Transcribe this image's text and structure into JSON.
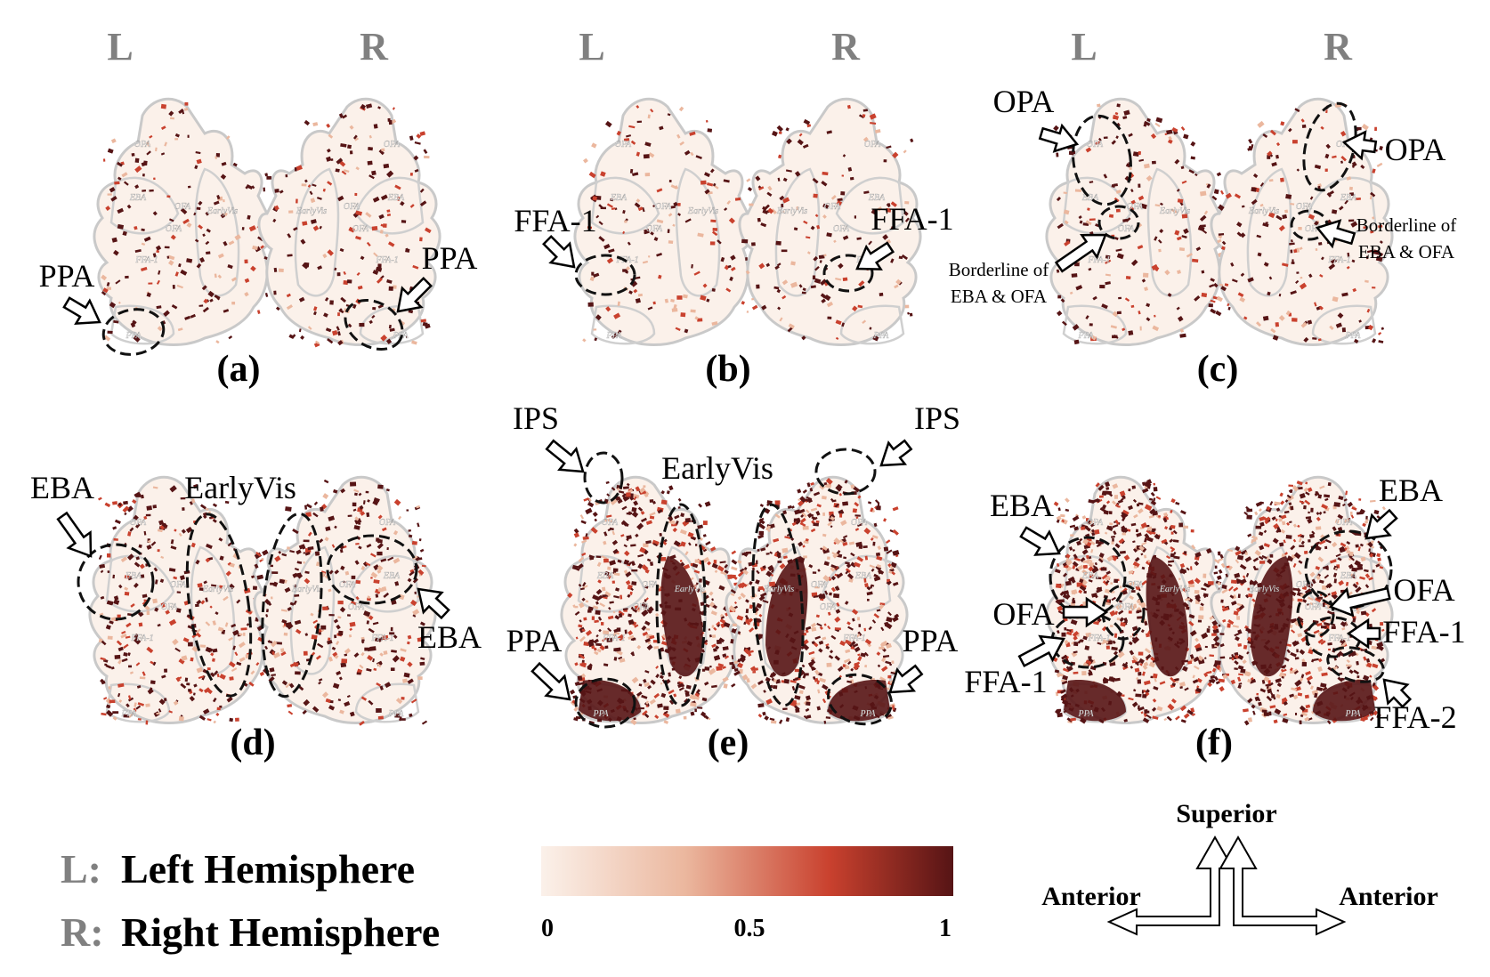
{
  "hemisphere_letters": {
    "left": "L",
    "right": "R"
  },
  "panels": [
    {
      "label": "(a)",
      "intensity": 0.12,
      "callouts": [
        "PPA",
        "PPA"
      ]
    },
    {
      "label": "(b)",
      "intensity": 0.1,
      "callouts": [
        "FFA-1",
        "FFA-1"
      ]
    },
    {
      "label": "(c)",
      "intensity": 0.14,
      "callouts": [
        "OPA",
        "OPA",
        "Borderline of",
        "EBA & OFA",
        "Borderline of",
        "EBA & OFA"
      ]
    },
    {
      "label": "(d)",
      "intensity": 0.3,
      "callouts": [
        "EBA",
        "EarlyVis",
        "EBA"
      ]
    },
    {
      "label": "(e)",
      "intensity": 0.62,
      "callouts": [
        "IPS",
        "IPS",
        "EarlyVis",
        "PPA",
        "PPA"
      ]
    },
    {
      "label": "(f)",
      "intensity": 0.78,
      "callouts": [
        "EBA",
        "EBA",
        "OFA",
        "OFA",
        "FFA-1",
        "FFA-1",
        "FFA-2"
      ]
    }
  ],
  "roi_outline_labels": [
    "OPA",
    "EBA",
    "OFA",
    "EarlyVis",
    "FFA-1",
    "FFA-2",
    "PPA"
  ],
  "legend": {
    "left_key": "L:",
    "left_text": "Left Hemisphere",
    "right_key": "R:",
    "right_text": "Right Hemisphere"
  },
  "colorbar": {
    "ticks": [
      "0",
      "0.5",
      "1"
    ],
    "colors": [
      "#fbf1ea",
      "#ebb79e",
      "#c9412e",
      "#561415"
    ]
  },
  "orientation": {
    "superior": "Superior",
    "anterior_left": "Anterior",
    "anterior_right": "Anterior"
  }
}
